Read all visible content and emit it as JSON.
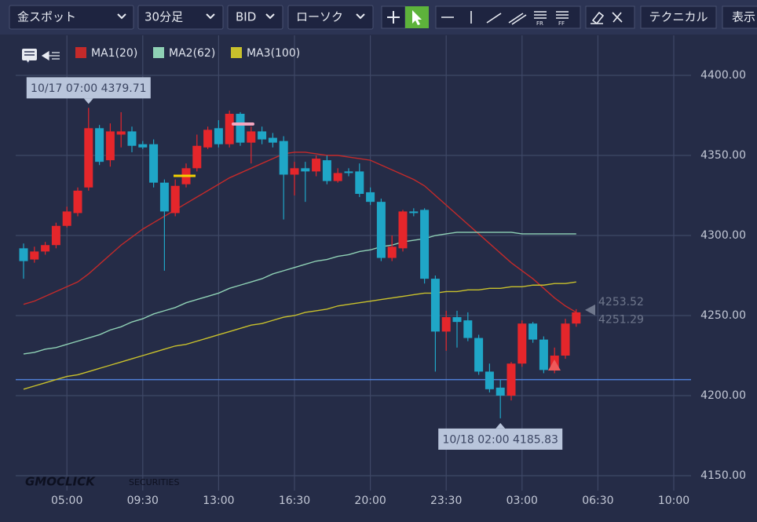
{
  "toolbar": {
    "symbol": "金スポット",
    "period": "30分足",
    "side": "BID",
    "chart_style": "ローソク",
    "technical": "テクニカル",
    "display": "表示"
  },
  "chart_data": {
    "type": "candlestick",
    "categories": [
      null,
      null,
      null,
      null,
      "05:00",
      null,
      null,
      null,
      null,
      null,
      null,
      "09:30",
      null,
      null,
      null,
      null,
      null,
      null,
      "13:00",
      null,
      null,
      null,
      null,
      null,
      null,
      "16:30",
      null,
      null,
      null,
      null,
      null,
      null,
      "20:00",
      null,
      null,
      null,
      null,
      null,
      null,
      "23:30",
      null,
      null,
      null,
      null,
      null,
      null,
      "03:00",
      null,
      null,
      null,
      null,
      null,
      null,
      "06:30",
      null,
      null,
      null,
      null,
      null,
      null,
      "10:00"
    ],
    "open": [
      4292,
      4285,
      4290,
      4294,
      4306,
      4314,
      4330,
      4367,
      4347,
      4363,
      4365,
      4357,
      4357,
      4333,
      4314,
      4332,
      4342,
      4355,
      4367,
      4357,
      4376,
      4358,
      4365,
      4361,
      4359,
      4338,
      4342,
      4340,
      4347,
      4334,
      4340,
      4340,
      4327,
      4321,
      4286,
      4292,
      4315,
      4316,
      4273,
      4240,
      4249,
      4247,
      4236,
      4215,
      4205,
      4200,
      4220,
      4245,
      4235,
      4216,
      4225,
      4245,
      null,
      null,
      null,
      null,
      null,
      null,
      null,
      null,
      null
    ],
    "high": [
      4295,
      4293,
      4296,
      4308,
      4318,
      4330,
      4379.71,
      4369,
      4370,
      4377,
      4368,
      4359,
      4360,
      4335,
      4335,
      4345,
      4363,
      4368,
      4372,
      4378,
      4377,
      4368,
      4368,
      4364,
      4362,
      4346,
      4346,
      4350,
      4350,
      4342,
      4342,
      4345,
      4330,
      4323,
      4300,
      4316,
      4317,
      4317,
      4275,
      4253,
      4253,
      4252,
      4238,
      4220,
      4210,
      4221,
      4247,
      4246,
      4237,
      4230,
      4248,
      4254,
      null,
      null,
      null,
      null,
      null,
      null,
      null,
      null,
      null
    ],
    "low": [
      4273,
      4283,
      4288,
      4292,
      4305,
      4312,
      4328,
      4344,
      4343,
      4355,
      4352,
      4354,
      4330,
      4278,
      4312,
      4330,
      4340,
      4354,
      4355,
      4355,
      4356,
      4345,
      4357,
      4355,
      4310,
      4325,
      4321,
      4337,
      4332,
      4333,
      4337,
      4324,
      4319,
      4284,
      4284,
      4290,
      4312,
      4270,
      4215,
      4228,
      4230,
      4234,
      4213,
      4202,
      4185.83,
      4197,
      4218,
      4233,
      4214,
      4214,
      4223,
      4243,
      null,
      null,
      null,
      null,
      null,
      null,
      null,
      null,
      null
    ],
    "close": [
      4284,
      4290,
      4294,
      4306,
      4315,
      4328,
      4367,
      4346,
      4365,
      4365,
      4356,
      4355,
      4333,
      4315,
      4331,
      4342,
      4356,
      4366,
      4357,
      4376,
      4358,
      4365,
      4360,
      4358,
      4338,
      4342,
      4340,
      4348,
      4334,
      4339,
      4339,
      4326,
      4321,
      4286,
      4293,
      4315,
      4314,
      4273,
      4240,
      4249,
      4246,
      4236,
      4215,
      4204,
      4200,
      4220,
      4245,
      4235,
      4216,
      4225,
      4245,
      4252,
      null,
      null,
      null,
      null,
      null,
      null,
      null,
      null,
      null
    ],
    "up_color": "#e5262b",
    "down_color": "#1fa6c7",
    "series": [
      {
        "name": "MA1(20)",
        "color": "#c42a2a",
        "values": [
          4257,
          4259,
          4262,
          4265,
          4268,
          4271,
          4276,
          4282,
          4288,
          4294,
          4299,
          4304,
          4308,
          4312,
          4316,
          4320,
          4324,
          4328,
          4332,
          4336,
          4339,
          4342,
          4345,
          4348,
          4351,
          4352,
          4352,
          4351,
          4350,
          4350,
          4349,
          4348,
          4347,
          4344,
          4341,
          4338,
          4335,
          4331,
          4325,
          4319,
          4313,
          4307,
          4301,
          4295,
          4289,
          4283,
          4278,
          4273,
          4267,
          4261,
          4256,
          4252,
          null,
          null,
          null,
          null,
          null,
          null,
          null,
          null,
          null
        ]
      },
      {
        "name": "MA2(62)",
        "color": "#8fd1b5",
        "values": [
          4226,
          4227,
          4229,
          4230,
          4232,
          4234,
          4236,
          4238,
          4241,
          4243,
          4246,
          4248,
          4251,
          4253,
          4255,
          4258,
          4260,
          4262,
          4264,
          4267,
          4269,
          4271,
          4273,
          4276,
          4278,
          4280,
          4282,
          4284,
          4285,
          4287,
          4288,
          4290,
          4291,
          4293,
          4294,
          4296,
          4297,
          4298,
          4300,
          4301,
          4302,
          4302,
          4302,
          4302,
          4302,
          4302,
          4301,
          4301,
          4301,
          4301,
          4301,
          4301,
          null,
          null,
          null,
          null,
          null,
          null,
          null,
          null,
          null
        ]
      },
      {
        "name": "MA3(100)",
        "color": "#c9c12c",
        "values": [
          4204,
          4206,
          4208,
          4210,
          4212,
          4213,
          4215,
          4217,
          4219,
          4221,
          4223,
          4225,
          4227,
          4229,
          4231,
          4232,
          4234,
          4236,
          4238,
          4240,
          4242,
          4244,
          4245,
          4247,
          4249,
          4250,
          4252,
          4253,
          4254,
          4256,
          4257,
          4258,
          4259,
          4260,
          4261,
          4262,
          4263,
          4264,
          4264,
          4265,
          4265,
          4266,
          4266,
          4267,
          4267,
          4268,
          4268,
          4269,
          4269,
          4270,
          4270,
          4271,
          null,
          null,
          null,
          null,
          null,
          null,
          null,
          null,
          null
        ]
      }
    ],
    "ylim": [
      4140,
      4425
    ],
    "yticks": [
      {
        "value": 4150,
        "label": "4150.00"
      },
      {
        "value": 4200,
        "label": "4200.00"
      },
      {
        "value": 4250,
        "label": "4250.00"
      },
      {
        "value": 4300,
        "label": "4300.00"
      },
      {
        "value": 4350,
        "label": "4350.00"
      },
      {
        "value": 4400,
        "label": "4400.00"
      }
    ],
    "grid": true,
    "reference_line": {
      "value": 4210,
      "color": "#4f7fd6"
    },
    "annotations": [
      "10/17 07:00 4379.71",
      "10/18 02:00 4185.83"
    ],
    "price_labels": [
      4253.52,
      4251.29
    ],
    "watermark": [
      "GMOCLICK",
      "SECURITIES"
    ]
  }
}
